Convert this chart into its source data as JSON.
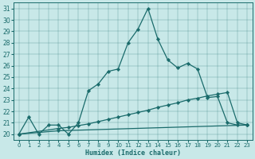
{
  "xlabel": "Humidex (Indice chaleur)",
  "bg_color": "#c8e8e8",
  "line_color": "#1a6b6b",
  "xlim": [
    -0.5,
    23.5
  ],
  "ylim": [
    19.5,
    31.5
  ],
  "xticks": [
    0,
    1,
    2,
    3,
    4,
    5,
    6,
    7,
    8,
    9,
    10,
    11,
    12,
    13,
    14,
    15,
    16,
    17,
    18,
    19,
    20,
    21,
    22,
    23
  ],
  "yticks": [
    20,
    21,
    22,
    23,
    24,
    25,
    26,
    27,
    28,
    29,
    30,
    31
  ],
  "curve1_x": [
    0,
    1,
    2,
    3,
    4,
    5,
    6,
    7,
    8,
    9,
    10,
    11,
    12,
    13,
    14,
    15,
    16,
    17,
    18,
    19,
    20,
    21,
    22,
    23
  ],
  "curve1_y": [
    20.0,
    21.5,
    20.0,
    20.8,
    20.8,
    20.0,
    21.0,
    23.8,
    24.4,
    25.5,
    25.7,
    28.0,
    29.2,
    31.0,
    28.3,
    26.5,
    25.8,
    26.2,
    25.7,
    23.2,
    23.3,
    21.0,
    20.8,
    20.8
  ],
  "curve2_x": [
    0,
    4,
    5,
    6,
    7,
    8,
    9,
    10,
    11,
    12,
    13,
    14,
    15,
    16,
    17,
    18,
    19,
    20,
    21,
    22,
    23
  ],
  "curve2_y": [
    20.0,
    20.5,
    20.6,
    20.75,
    20.9,
    21.1,
    21.3,
    21.5,
    21.7,
    21.9,
    22.1,
    22.35,
    22.55,
    22.75,
    23.0,
    23.15,
    23.35,
    23.5,
    23.65,
    21.0,
    20.8
  ],
  "curve3_x": [
    0,
    4,
    23
  ],
  "curve3_y": [
    20.0,
    20.3,
    20.8
  ]
}
